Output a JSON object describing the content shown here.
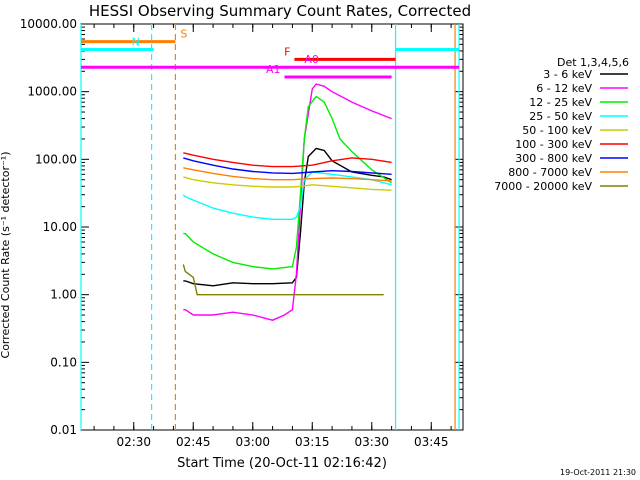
{
  "chart_data": {
    "type": "line",
    "title": "HESSI Observing Summary Count Rates, Corrected",
    "xlabel": "Start Time (20-Oct-11 02:16:42)",
    "ylabel": "Corrected Count Rate (s⁻¹ detector⁻¹)",
    "x_ticks": [
      "02:30",
      "02:45",
      "03:00",
      "03:15",
      "03:30",
      "03:45"
    ],
    "y_ticks": [
      "0.01",
      "0.10",
      "1.00",
      "10.00",
      "100.00",
      "1000.00",
      "10000.00"
    ],
    "y_scale": "log",
    "xlim": [
      "02:16:42",
      "03:53:00"
    ],
    "ylim": [
      0.01,
      10000
    ],
    "legend_title": "Det 1,3,4,5,6",
    "legend_position": "right",
    "series": [
      {
        "name": "3 - 6 keV",
        "color": "#000000",
        "x": [
          "02:42:30",
          "02:43:00",
          "02:45:00",
          "02:50:00",
          "02:55:00",
          "03:00:00",
          "03:05:00",
          "03:10:00",
          "03:11:00",
          "03:12:00",
          "03:13:00",
          "03:14:00",
          "03:16:00",
          "03:18:00",
          "03:20:00",
          "03:25:00",
          "03:30:00",
          "03:33:00",
          "03:35:00"
        ],
        "y": [
          1.6,
          1.6,
          1.45,
          1.35,
          1.5,
          1.45,
          1.45,
          1.5,
          1.8,
          8,
          45,
          110,
          145,
          135,
          95,
          65,
          58,
          55,
          50
        ]
      },
      {
        "name": "6 - 12 keV",
        "color": "#ff00ff",
        "x": [
          "02:42:30",
          "02:43:00",
          "02:45:00",
          "02:50:00",
          "02:55:00",
          "03:00:00",
          "03:05:00",
          "03:08:00",
          "03:10:00",
          "03:11:00",
          "03:12:00",
          "03:13:00",
          "03:15:00",
          "03:16:00",
          "03:18:00",
          "03:20:00",
          "03:25:00",
          "03:30:00",
          "03:35:00"
        ],
        "y": [
          0.6,
          0.6,
          0.5,
          0.5,
          0.55,
          0.5,
          0.42,
          0.5,
          0.6,
          2,
          20,
          200,
          1100,
          1300,
          1200,
          1000,
          700,
          520,
          400
        ]
      },
      {
        "name": "12 - 25 keV",
        "color": "#00ee00",
        "x": [
          "02:42:30",
          "02:43:00",
          "02:45:00",
          "02:50:00",
          "02:55:00",
          "03:00:00",
          "03:05:00",
          "03:10:00",
          "03:11:00",
          "03:12:00",
          "03:13:00",
          "03:14:00",
          "03:16:00",
          "03:18:00",
          "03:20:00",
          "03:22:00",
          "03:25:00",
          "03:30:00",
          "03:35:00"
        ],
        "y": [
          8,
          8,
          6,
          4,
          3,
          2.6,
          2.4,
          2.6,
          5,
          30,
          200,
          600,
          850,
          700,
          400,
          200,
          130,
          70,
          45
        ]
      },
      {
        "name": "25 - 50 keV",
        "color": "#00ffff",
        "x": [
          "02:42:30",
          "02:43:00",
          "02:45:00",
          "02:50:00",
          "02:55:00",
          "03:00:00",
          "03:05:00",
          "03:10:00",
          "03:11:00",
          "03:12:00",
          "03:13:00",
          "03:15:00",
          "03:20:00",
          "03:25:00",
          "03:30:00",
          "03:35:00"
        ],
        "y": [
          30,
          28,
          25,
          19,
          16,
          14,
          13,
          13,
          14,
          20,
          50,
          65,
          60,
          55,
          50,
          42
        ]
      },
      {
        "name": "50 - 100 keV",
        "color": "#cccc00",
        "x": [
          "02:42:30",
          "02:45:00",
          "02:50:00",
          "02:55:00",
          "03:00:00",
          "03:05:00",
          "03:10:00",
          "03:12:00",
          "03:15:00",
          "03:20:00",
          "03:25:00",
          "03:30:00",
          "03:35:00"
        ],
        "y": [
          55,
          50,
          45,
          42,
          40,
          39,
          39,
          40,
          42,
          40,
          38,
          36,
          35
        ]
      },
      {
        "name": "100 - 300 keV",
        "color": "#ff0000",
        "x": [
          "02:42:30",
          "02:45:00",
          "02:50:00",
          "02:55:00",
          "03:00:00",
          "03:05:00",
          "03:10:00",
          "03:15:00",
          "03:20:00",
          "03:25:00",
          "03:30:00",
          "03:35:00"
        ],
        "y": [
          125,
          115,
          100,
          90,
          82,
          78,
          78,
          82,
          95,
          105,
          100,
          90
        ]
      },
      {
        "name": "300 - 800 keV",
        "color": "#0000ff",
        "x": [
          "02:42:30",
          "02:45:00",
          "02:50:00",
          "02:55:00",
          "03:00:00",
          "03:05:00",
          "03:10:00",
          "03:15:00",
          "03:20:00",
          "03:25:00",
          "03:30:00",
          "03:35:00"
        ],
        "y": [
          105,
          95,
          82,
          72,
          66,
          63,
          62,
          65,
          68,
          66,
          63,
          60
        ]
      },
      {
        "name": "800 - 7000 keV",
        "color": "#ff8000",
        "x": [
          "02:42:30",
          "02:45:00",
          "02:50:00",
          "02:55:00",
          "03:00:00",
          "03:05:00",
          "03:10:00",
          "03:15:00",
          "03:20:00",
          "03:25:00",
          "03:30:00",
          "03:35:00"
        ],
        "y": [
          75,
          70,
          62,
          56,
          52,
          50,
          50,
          52,
          53,
          52,
          50,
          48
        ]
      },
      {
        "name": "7000 - 20000 keV",
        "color": "#808000",
        "x": [
          "02:42:30",
          "02:43:00",
          "02:45:00",
          "02:46:00",
          "03:08:00",
          "03:10:00",
          "03:20:00",
          "03:25:00",
          "03:33:00"
        ],
        "y": [
          2.8,
          2.2,
          1.8,
          1.0,
          1.0,
          1.0,
          1.0,
          1.0,
          1.0
        ]
      }
    ],
    "flag_bars": [
      {
        "label": "S",
        "color": "#ff8000",
        "start": "02:16:42",
        "end": "02:40:30",
        "level": 5500
      },
      {
        "label": "N",
        "color": "#00ffff",
        "start": "02:16:42",
        "end": "02:35:00",
        "level": 4200
      },
      {
        "label": "",
        "color": "#00ffff",
        "start": "03:36:00",
        "end": "03:52:00",
        "level": 4200
      },
      {
        "label": "F",
        "color": "#ff0000",
        "start": "03:10:30",
        "end": "03:36:00",
        "level": 3000
      },
      {
        "label": "A0",
        "color": "#ff00ff",
        "start": "02:16:42",
        "end": "03:52:00",
        "level": 2300
      },
      {
        "label": "A1",
        "color": "#ff00ff",
        "start": "03:08:00",
        "end": "03:35:00",
        "level": 1650
      }
    ],
    "vertical_markers": [
      {
        "time": "02:16:42",
        "color": "#00ffff",
        "style": "solid"
      },
      {
        "time": "02:34:30",
        "color": "#00ffff",
        "style": "dashed"
      },
      {
        "time": "02:40:30",
        "color": "#ff8000",
        "style": "dashed"
      },
      {
        "time": "03:36:00",
        "color": "#00ffff",
        "style": "solid"
      },
      {
        "time": "03:51:00",
        "color": "#ff8000",
        "style": "solid"
      },
      {
        "time": "03:52:00",
        "color": "#00ffff",
        "style": "solid"
      }
    ],
    "timestamp": "19-Oct-2011 21:30"
  }
}
